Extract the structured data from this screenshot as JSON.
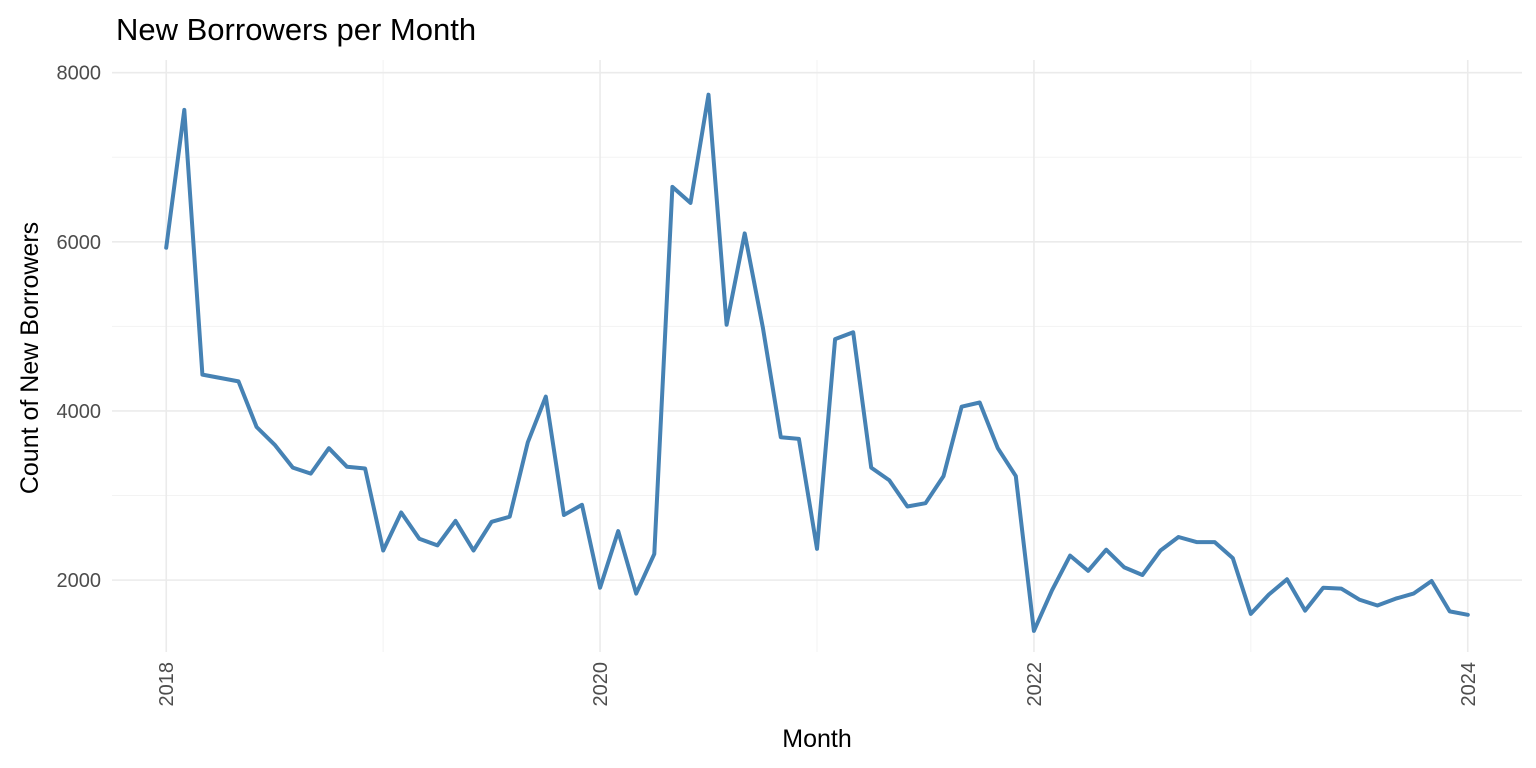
{
  "chart_data": {
    "type": "line",
    "title": "New Borrowers per Month",
    "xlabel": "Month",
    "ylabel": "Count of New Borrowers",
    "x_tick_labels": [
      "2018",
      "2020",
      "2022",
      "2024"
    ],
    "y_tick_labels": [
      "2000",
      "4000",
      "6000",
      "8000"
    ],
    "ylim": [
      1150,
      8150
    ],
    "xlim": [
      "2017-10",
      "2024-04"
    ],
    "grid": true,
    "legend": "none",
    "line_color": "#4682B4",
    "series": [
      {
        "x": [
          "2018-01",
          "2018-02",
          "2018-03",
          "2018-04",
          "2018-05",
          "2018-06",
          "2018-07",
          "2018-08",
          "2018-09",
          "2018-10",
          "2018-11",
          "2018-12",
          "2019-01",
          "2019-02",
          "2019-03",
          "2019-04",
          "2019-05",
          "2019-06",
          "2019-07",
          "2019-08",
          "2019-09",
          "2019-10",
          "2019-11",
          "2019-12",
          "2020-01",
          "2020-02",
          "2020-03",
          "2020-04",
          "2020-05",
          "2020-06",
          "2020-07",
          "2020-08",
          "2020-09",
          "2020-10",
          "2020-11",
          "2020-12",
          "2021-01",
          "2021-02",
          "2021-03",
          "2021-04",
          "2021-05",
          "2021-06",
          "2021-07",
          "2021-08",
          "2021-09",
          "2021-10",
          "2021-11",
          "2021-12",
          "2022-01",
          "2022-02",
          "2022-03",
          "2022-04",
          "2022-05",
          "2022-06",
          "2022-07",
          "2022-08",
          "2022-09",
          "2022-10",
          "2022-11",
          "2022-12",
          "2023-01",
          "2023-02",
          "2023-03",
          "2023-04",
          "2023-05",
          "2023-06",
          "2023-07",
          "2023-08",
          "2023-09",
          "2023-10",
          "2023-11",
          "2023-12",
          "2024-01"
        ],
        "values": [
          5930,
          7560,
          4430,
          4390,
          4350,
          3810,
          3600,
          3330,
          3260,
          3560,
          3340,
          3320,
          2350,
          2800,
          2490,
          2410,
          2700,
          2350,
          2690,
          2750,
          3630,
          4170,
          2770,
          2890,
          1910,
          2580,
          1840,
          2310,
          6650,
          6460,
          7740,
          5020,
          6100,
          4990,
          3690,
          3670,
          2370,
          4850,
          4930,
          3330,
          3180,
          2870,
          2910,
          3230,
          4050,
          4100,
          3560,
          3230,
          1400,
          1880,
          2290,
          2110,
          2360,
          2150,
          2060,
          2350,
          2510,
          2450,
          2450,
          2260,
          1600,
          1830,
          2010,
          1640,
          1910,
          1900,
          1770,
          1700,
          1780,
          1840,
          1990,
          1630,
          1590
        ]
      }
    ]
  }
}
